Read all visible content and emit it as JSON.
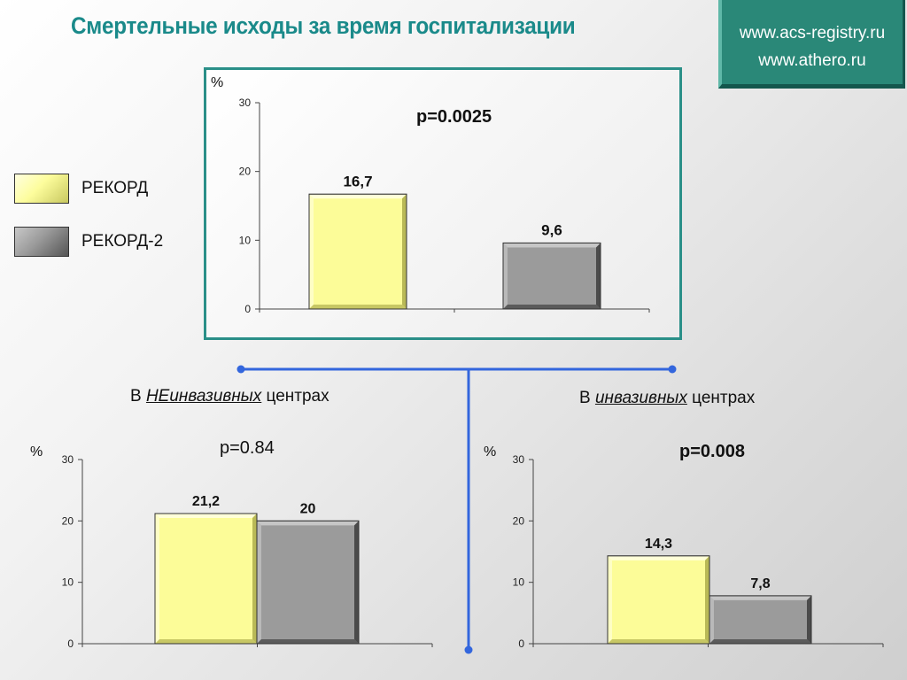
{
  "title": "Смертельные исходы за время госпитализации",
  "links": [
    "www.acs-registry.ru",
    "www.athero.ru"
  ],
  "legend": [
    {
      "label": "РЕКОРД",
      "color": "#fdfd9c"
    },
    {
      "label": "РЕКОРД-2",
      "color": "#9a9a9a"
    }
  ],
  "colors": {
    "teal": "#2a8f88",
    "title": "#1a8a8a",
    "connector": "#3366dd"
  },
  "groups": {
    "noninvasive": {
      "prefix": "В ",
      "emph": "НЕинвазивных",
      "suffix": " центрах"
    },
    "invasive": {
      "prefix": "В ",
      "emph": "инвазивных",
      "suffix": " центрах"
    }
  },
  "chart_data": [
    {
      "type": "bar",
      "unit": "%",
      "pvalue": "p=0.0025",
      "pvalue_bold": true,
      "series": [
        {
          "name": "РЕКОРД",
          "value": 16.7,
          "label": "16,7"
        },
        {
          "name": "РЕКОРД-2",
          "value": 9.6,
          "label": "9,6"
        }
      ],
      "ylim": [
        0,
        30
      ],
      "yticks": [
        0,
        10,
        20,
        30
      ],
      "grouping": "separate"
    },
    {
      "type": "bar",
      "unit": "%",
      "pvalue": "p=0.84",
      "pvalue_bold": false,
      "series": [
        {
          "name": "РЕКОРД",
          "value": 21.2,
          "label": "21,2"
        },
        {
          "name": "РЕКОРД-2",
          "value": 20,
          "label": "20"
        }
      ],
      "ylim": [
        0,
        30
      ],
      "yticks": [
        0,
        10,
        20,
        30
      ],
      "grouping": "adjacent"
    },
    {
      "type": "bar",
      "unit": "%",
      "pvalue": "p=0.008",
      "pvalue_bold": true,
      "series": [
        {
          "name": "РЕКОРД",
          "value": 14.3,
          "label": "14,3"
        },
        {
          "name": "РЕКОРД-2",
          "value": 7.8,
          "label": "7,8"
        }
      ],
      "ylim": [
        0,
        30
      ],
      "yticks": [
        0,
        10,
        20,
        30
      ],
      "grouping": "adjacent"
    }
  ]
}
